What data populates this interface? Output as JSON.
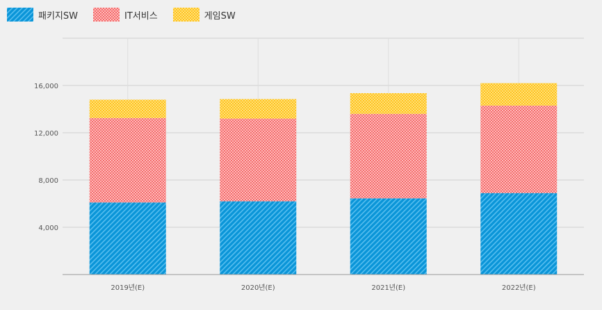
{
  "chart_data": {
    "type": "bar",
    "stacked": true,
    "categories": [
      "2019년(E)",
      "2020년(E)",
      "2021년(E)",
      "2022년(E)"
    ],
    "series": [
      {
        "name": "패키지SW",
        "color": "#0a95d8",
        "pattern": "diagonal-stripes",
        "values": [
          6100,
          6200,
          6450,
          6900
        ]
      },
      {
        "name": "IT서비스",
        "color": "#f36b6b",
        "pattern": "checkerboard",
        "values": [
          7150,
          7000,
          7150,
          7400
        ]
      },
      {
        "name": "게임SW",
        "color": "#ffc21e",
        "pattern": "checkerboard",
        "values": [
          1550,
          1650,
          1750,
          1900
        ]
      }
    ],
    "yticks": [
      "4,000",
      "8,000",
      "12,000",
      "16,000"
    ],
    "ytick_values": [
      4000,
      8000,
      12000,
      16000
    ],
    "ylim": [
      0,
      20000
    ],
    "grid": true,
    "legend_position": "top-left",
    "title": "",
    "xlabel": "",
    "ylabel": ""
  }
}
